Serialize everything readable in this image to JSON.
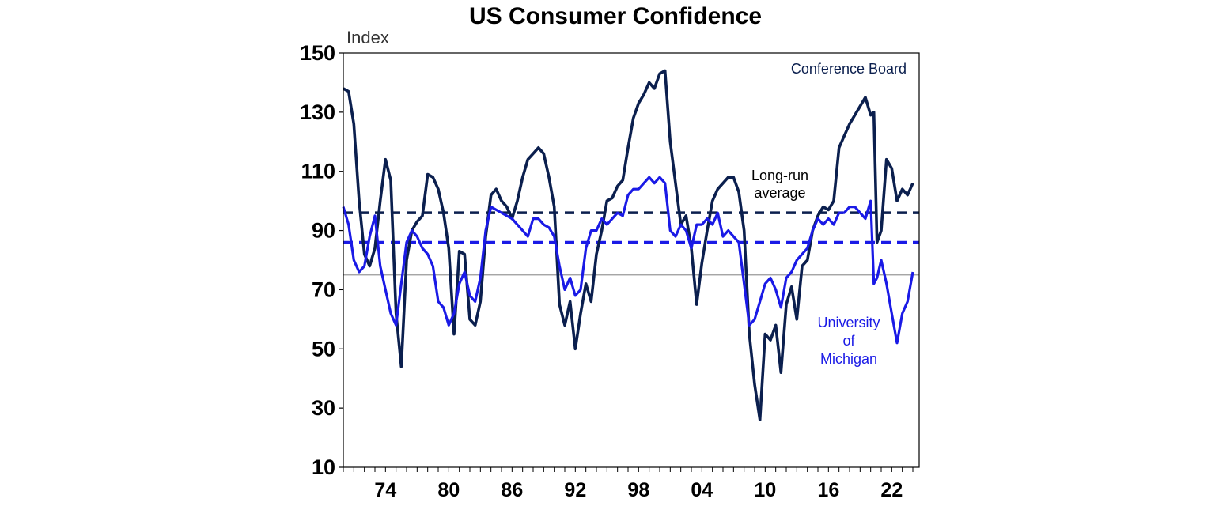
{
  "chart_data": {
    "type": "line",
    "title": "US Consumer Confidence",
    "unit_label": "Index",
    "xlabel": "",
    "ylabel": "",
    "ylim": [
      10,
      150
    ],
    "xlim": [
      1970.0,
      2024.6
    ],
    "yticks": [
      10,
      30,
      50,
      70,
      90,
      110,
      130,
      150
    ],
    "xtick_values": [
      1974,
      1980,
      1986,
      1992,
      1998,
      2004,
      2010,
      2016,
      2022
    ],
    "xtick_labels": [
      "74",
      "80",
      "86",
      "92",
      "98",
      "04",
      "10",
      "16",
      "22"
    ],
    "grid": false,
    "reference_lines": [
      {
        "value": 75,
        "style": "thin solid",
        "color": "#999999"
      },
      {
        "value": 96,
        "style": "dashed",
        "color": "#0b1f4e",
        "series": "Conference Board"
      },
      {
        "value": 86,
        "style": "dashed",
        "color": "#1a1ae6",
        "series": "University of Michigan"
      }
    ],
    "annotations": [
      {
        "lines": [
          "Conference Board"
        ],
        "color": "#0b1f4e",
        "anchor": "top-right"
      },
      {
        "lines": [
          "Long-run",
          "average"
        ],
        "color": "#000000",
        "anchor": "above dashed lines, right"
      },
      {
        "lines": [
          "University",
          "of",
          "Michigan"
        ],
        "color": "#1a1ae6",
        "anchor": "bottom-right"
      }
    ],
    "series": [
      {
        "name": "Conference Board",
        "color": "#0b1f4e",
        "x": [
          1970.0,
          1970.5,
          1971.0,
          1971.5,
          1972.0,
          1972.5,
          1973.0,
          1973.5,
          1974.0,
          1974.5,
          1975.0,
          1975.5,
          1976.0,
          1976.5,
          1977.0,
          1977.5,
          1978.0,
          1978.5,
          1979.0,
          1979.5,
          1980.0,
          1980.5,
          1981.0,
          1981.5,
          1982.0,
          1982.5,
          1983.0,
          1983.5,
          1984.0,
          1984.5,
          1985.0,
          1985.5,
          1986.0,
          1986.5,
          1987.0,
          1987.5,
          1988.0,
          1988.5,
          1989.0,
          1989.5,
          1990.0,
          1990.5,
          1991.0,
          1991.5,
          1992.0,
          1992.5,
          1993.0,
          1993.5,
          1994.0,
          1994.5,
          1995.0,
          1995.5,
          1996.0,
          1996.5,
          1997.0,
          1997.5,
          1998.0,
          1998.5,
          1999.0,
          1999.5,
          2000.0,
          2000.5,
          2001.0,
          2001.5,
          2002.0,
          2002.5,
          2003.0,
          2003.5,
          2004.0,
          2004.5,
          2005.0,
          2005.5,
          2006.0,
          2006.5,
          2007.0,
          2007.5,
          2008.0,
          2008.5,
          2009.0,
          2009.5,
          2010.0,
          2010.5,
          2011.0,
          2011.5,
          2012.0,
          2012.5,
          2013.0,
          2013.5,
          2014.0,
          2014.5,
          2015.0,
          2015.5,
          2016.0,
          2016.5,
          2017.0,
          2017.5,
          2018.0,
          2018.5,
          2019.0,
          2019.5,
          2020.0,
          2020.3,
          2020.6,
          2021.0,
          2021.5,
          2022.0,
          2022.5,
          2023.0,
          2023.5,
          2024.0
        ],
        "values": [
          138,
          137,
          126,
          100,
          82,
          78,
          84,
          100,
          114,
          107,
          62,
          44,
          80,
          90,
          93,
          95,
          109,
          108,
          104,
          96,
          84,
          55,
          83,
          82,
          60,
          58,
          66,
          88,
          102,
          104,
          100,
          98,
          94,
          100,
          108,
          114,
          116,
          118,
          116,
          108,
          98,
          65,
          58,
          66,
          50,
          62,
          72,
          66,
          82,
          90,
          100,
          101,
          105,
          107,
          118,
          128,
          133,
          136,
          140,
          138,
          143,
          144,
          120,
          106,
          92,
          95,
          84,
          65,
          79,
          90,
          100,
          104,
          106,
          108,
          108,
          103,
          90,
          55,
          38,
          26,
          55,
          53,
          58,
          42,
          65,
          71,
          60,
          78,
          80,
          90,
          95,
          98,
          97,
          100,
          118,
          122,
          126,
          129,
          132,
          135,
          129,
          130,
          86,
          90,
          114,
          111,
          100,
          104,
          102,
          106
        ]
      },
      {
        "name": "University of Michigan",
        "color": "#1a1ae6",
        "x": [
          1970.0,
          1970.5,
          1971.0,
          1971.5,
          1972.0,
          1972.5,
          1973.0,
          1973.5,
          1974.0,
          1974.5,
          1975.0,
          1975.5,
          1976.0,
          1976.5,
          1977.0,
          1977.5,
          1978.0,
          1978.5,
          1979.0,
          1979.5,
          1980.0,
          1980.5,
          1981.0,
          1981.5,
          1982.0,
          1982.5,
          1983.0,
          1983.5,
          1984.0,
          1984.5,
          1985.0,
          1985.5,
          1986.0,
          1986.5,
          1987.0,
          1987.5,
          1988.0,
          1988.5,
          1989.0,
          1989.5,
          1990.0,
          1990.5,
          1991.0,
          1991.5,
          1992.0,
          1992.5,
          1993.0,
          1993.5,
          1994.0,
          1994.5,
          1995.0,
          1995.5,
          1996.0,
          1996.5,
          1997.0,
          1997.5,
          1998.0,
          1998.5,
          1999.0,
          1999.5,
          2000.0,
          2000.5,
          2001.0,
          2001.5,
          2002.0,
          2002.5,
          2003.0,
          2003.5,
          2004.0,
          2004.5,
          2005.0,
          2005.5,
          2006.0,
          2006.5,
          2007.0,
          2007.5,
          2008.0,
          2008.5,
          2009.0,
          2009.5,
          2010.0,
          2010.5,
          2011.0,
          2011.5,
          2012.0,
          2012.5,
          2013.0,
          2013.5,
          2014.0,
          2014.5,
          2015.0,
          2015.5,
          2016.0,
          2016.5,
          2017.0,
          2017.5,
          2018.0,
          2018.5,
          2019.0,
          2019.5,
          2020.0,
          2020.3,
          2020.6,
          2021.0,
          2021.5,
          2022.0,
          2022.5,
          2023.0,
          2023.5,
          2024.0
        ],
        "values": [
          98,
          92,
          80,
          76,
          78,
          88,
          95,
          78,
          70,
          62,
          58,
          72,
          86,
          90,
          88,
          84,
          82,
          78,
          66,
          64,
          58,
          62,
          72,
          76,
          68,
          66,
          74,
          90,
          98,
          97,
          96,
          95,
          94,
          92,
          90,
          88,
          94,
          94,
          92,
          91,
          88,
          78,
          70,
          74,
          68,
          70,
          84,
          90,
          90,
          94,
          92,
          94,
          96,
          95,
          102,
          104,
          104,
          106,
          108,
          106,
          108,
          106,
          90,
          88,
          92,
          90,
          84,
          92,
          92,
          94,
          92,
          96,
          88,
          90,
          88,
          86,
          72,
          58,
          60,
          66,
          72,
          74,
          70,
          64,
          74,
          76,
          80,
          82,
          84,
          90,
          94,
          92,
          94,
          92,
          96,
          96,
          98,
          98,
          96,
          94,
          100,
          72,
          74,
          80,
          72,
          62,
          52,
          62,
          66,
          76
        ]
      }
    ]
  }
}
